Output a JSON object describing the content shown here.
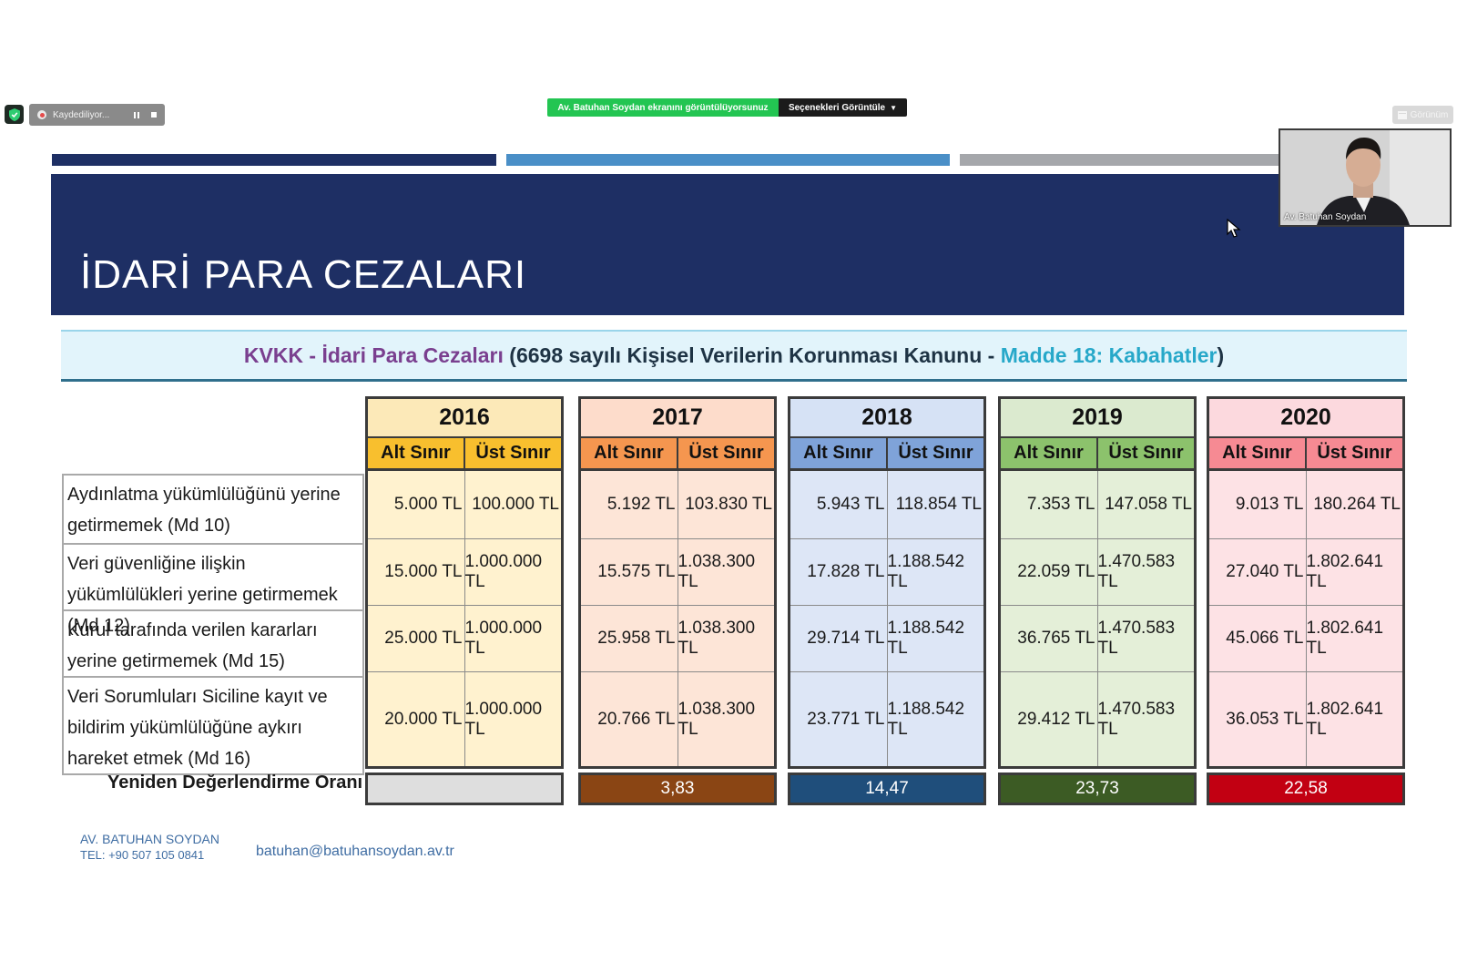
{
  "zoom_bar": {
    "recording_label": "Kaydediliyor...",
    "share_banner": "Av. Batuhan Soydan ekranını görüntülüyorsunuz",
    "options_button": "Seçenekleri Görüntüle",
    "view_button": "Görünüm"
  },
  "participant": {
    "name": "Av. Batuhan Soydan"
  },
  "slide": {
    "title": "İDARİ PARA CEZALARI",
    "subtitle_kvkk": "KVKK - İdari Para Cezaları",
    "subtitle_law": " (6698 sayılı Kişisel Verilerin Korunması Kanunu - ",
    "subtitle_article": "Madde 18: Kabahatler",
    "subtitle_close": ")",
    "lower_label": "Alt Sınır",
    "upper_label": "Üst Sınır",
    "row_labels": [
      "Aydınlatma yükümlülüğünü yerine getirmemek (Md 10)",
      "Veri güvenliğine ilişkin yükümlülükleri yerine getirmemek (Md 12)",
      "Kurul tarafında  verilen kararları yerine getirmemek (Md 15)",
      "Veri Sorumluları Siciline kayıt ve bildirim yükümlülüğüne aykırı hareket etmek (Md 16)"
    ],
    "rate_label": "Yeniden Değerlendirme Oranı (%)",
    "years": [
      {
        "year": "2016",
        "rate": "",
        "header_color": "#fce9b8",
        "sub_color": "#f8bf2e",
        "cell_color": "#fff2cf",
        "rate_color": "#dedede",
        "rows": [
          [
            "5.000 TL",
            "100.000 TL"
          ],
          [
            "15.000 TL",
            "1.000.000 TL"
          ],
          [
            "25.000 TL",
            "1.000.000 TL"
          ],
          [
            "20.000 TL",
            "1.000.000 TL"
          ]
        ]
      },
      {
        "year": "2017",
        "rate": "3,83",
        "header_color": "#fddccb",
        "sub_color": "#f5964f",
        "cell_color": "#fde5d7",
        "rate_color": "#8a4514",
        "rows": [
          [
            "5.192 TL",
            "103.830 TL"
          ],
          [
            "15.575 TL",
            "1.038.300 TL"
          ],
          [
            "25.958 TL",
            "1.038.300 TL"
          ],
          [
            "20.766 TL",
            "1.038.300 TL"
          ]
        ]
      },
      {
        "year": "2018",
        "rate": "14,47",
        "header_color": "#d6e2f5",
        "sub_color": "#7fa3d9",
        "cell_color": "#dde6f6",
        "rate_color": "#1f4e7b",
        "rows": [
          [
            "5.943 TL",
            "118.854 TL"
          ],
          [
            "17.828 TL",
            "1.188.542 TL"
          ],
          [
            "29.714 TL",
            "1.188.542 TL"
          ],
          [
            "23.771 TL",
            "1.188.542 TL"
          ]
        ]
      },
      {
        "year": "2019",
        "rate": "23,73",
        "header_color": "#dbeacf",
        "sub_color": "#8cc26c",
        "cell_color": "#e4efd8",
        "rate_color": "#3c5b24",
        "rows": [
          [
            "7.353 TL",
            "147.058 TL"
          ],
          [
            "22.059 TL",
            "1.470.583 TL"
          ],
          [
            "36.765 TL",
            "1.470.583 TL"
          ],
          [
            "29.412 TL",
            "1.470.583 TL"
          ]
        ]
      },
      {
        "year": "2020",
        "rate": "22,58",
        "header_color": "#fcd9de",
        "sub_color": "#f68a93",
        "cell_color": "#fde2e5",
        "rate_color": "#c20012",
        "rows": [
          [
            "9.013 TL",
            "180.264 TL"
          ],
          [
            "27.040 TL",
            "1.802.641 TL"
          ],
          [
            "45.066 TL",
            "1.802.641 TL"
          ],
          [
            "36.053 TL",
            "1.802.641 TL"
          ]
        ]
      }
    ],
    "footer": {
      "name": "AV. BATUHAN SOYDAN",
      "tel": "TEL: +90 507 105  0841",
      "email": "batuhan@batuhansoydan.av.tr"
    }
  },
  "colors": {
    "title_band": "#1e2f64",
    "stripe_dark": "#1e2f64",
    "stripe_mid": "#4a8fc7",
    "stripe_light": "#a5a7ab",
    "share_green": "#23c552"
  }
}
